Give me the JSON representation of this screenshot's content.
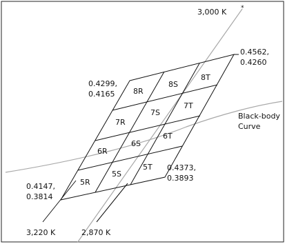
{
  "colors": {
    "frame": "#222222",
    "grid": "#111111",
    "curves": "#a8a8a8",
    "text": "#111111",
    "background": "#ffffff"
  },
  "labels": {
    "top_cct": "3,000 K",
    "top_cct_mark": "*",
    "bottom_left_cct": "3,220 K",
    "bottom_mid_cct": "2,870 K",
    "blackbody_line1": "Black-body",
    "blackbody_line2": "Curve"
  },
  "coords": {
    "top_right_x": "0.4562,",
    "top_right_y": "0.4260",
    "top_left_x": "0.4299,",
    "top_left_y": "0.4165",
    "bottom_right_x": "0.4373,",
    "bottom_right_y": "0.3893",
    "bottom_left_x": "0.4147,",
    "bottom_left_y": "0.3814"
  },
  "bins": {
    "8R": "8R",
    "8S": "8S",
    "8T": "8T",
    "7R": "7R",
    "7S": "7S",
    "7T": "7T",
    "6R": "6R",
    "6S": "6S",
    "6T": "6T",
    "5R": "5R",
    "5S": "5S",
    "5T": "5T"
  }
}
